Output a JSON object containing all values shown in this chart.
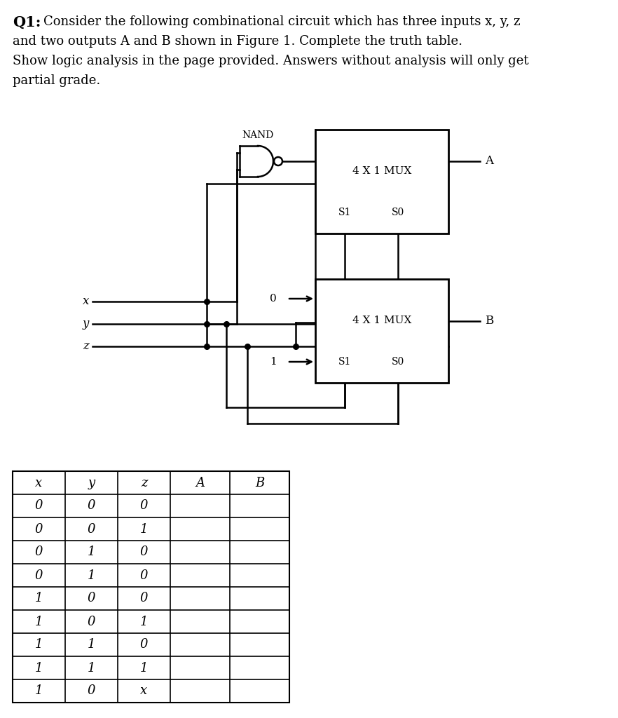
{
  "bg_color": "#ffffff",
  "title_bold": "Q1:",
  "title_rest_lines": [
    "Consider the following combinational circuit which has three inputs x, y, z",
    "and two outputs A and B shown in Figure 1. Complete the truth table.",
    "Show logic analysis in the page provided. Answers without analysis will only get",
    "partial grade."
  ],
  "mux1_label": "4 X 1 MUX",
  "mux2_label": "4 X 1 MUX",
  "mux1_output": "A",
  "mux2_output": "B",
  "nand_label": "NAND",
  "s1_label": "S1",
  "s0_label": "S0",
  "const0": "0",
  "const1": "1",
  "input_labels": [
    "x",
    "y",
    "z"
  ],
  "table_headers": [
    "x",
    "y",
    "z",
    "A",
    "B"
  ],
  "table_rows": [
    [
      "0",
      "0",
      "0",
      "",
      ""
    ],
    [
      "0",
      "0",
      "1",
      "",
      ""
    ],
    [
      "0",
      "1",
      "0",
      "",
      ""
    ],
    [
      "0",
      "1",
      "0",
      "",
      ""
    ],
    [
      "1",
      "0",
      "0",
      "",
      ""
    ],
    [
      "1",
      "0",
      "1",
      "",
      ""
    ],
    [
      "1",
      "1",
      "0",
      "",
      ""
    ],
    [
      "1",
      "1",
      "1",
      "",
      ""
    ],
    [
      "1",
      "0",
      "x",
      "",
      ""
    ]
  ]
}
